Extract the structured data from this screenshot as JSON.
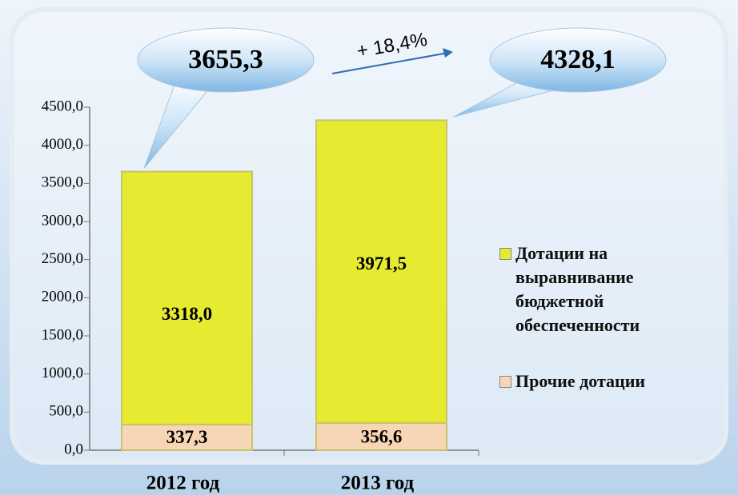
{
  "chart_data": {
    "type": "stacked_bar",
    "categories": [
      "2012 год",
      "2013 год"
    ],
    "series": [
      {
        "name": "Прочие дотации",
        "color": "#f6d6b4",
        "values": [
          337.3,
          356.6
        ],
        "value_labels": [
          "337,3",
          "356,6"
        ]
      },
      {
        "name": "Дотации на выравнивание бюджетной обеспеченности",
        "color": "#e6ea30",
        "values": [
          3318.0,
          3971.5
        ],
        "value_labels": [
          "3318,0",
          "3971,5"
        ]
      }
    ],
    "totals": [
      {
        "value": 3655.3,
        "label": "3655,3"
      },
      {
        "value": 4328.1,
        "label": "4328,1"
      }
    ],
    "annotation": "+ 18,4%",
    "ylim": [
      0,
      4500
    ],
    "yticks": [
      {
        "value": 0,
        "label": "0,0"
      },
      {
        "value": 500,
        "label": "500,0"
      },
      {
        "value": 1000,
        "label": "1000,0"
      },
      {
        "value": 1500,
        "label": "1500,0"
      },
      {
        "value": 2000,
        "label": "2000,0"
      },
      {
        "value": 2500,
        "label": "2500,0"
      },
      {
        "value": 3000,
        "label": "3000,0"
      },
      {
        "value": 3500,
        "label": "3500,0"
      },
      {
        "value": 4000,
        "label": "4000,0"
      },
      {
        "value": 4500,
        "label": "4500,0"
      }
    ],
    "legend": "right"
  }
}
